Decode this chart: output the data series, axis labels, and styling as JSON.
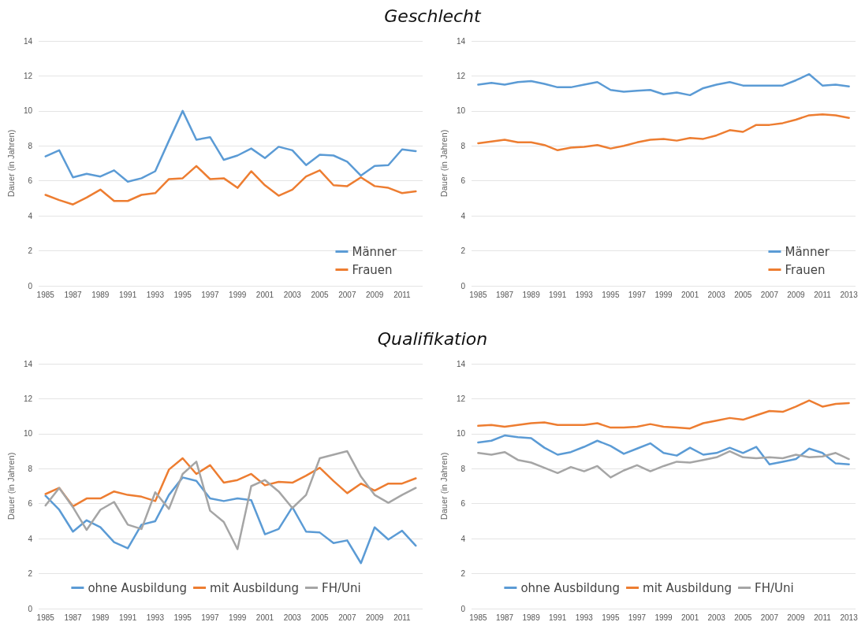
{
  "chart_data": [
    {
      "type": "line",
      "title": "Geschlecht",
      "ylabel": "Dauer (in Jahren)",
      "categories": [
        "1985",
        null,
        "1987",
        null,
        "1989",
        null,
        "1991",
        null,
        "1993",
        null,
        "1995",
        null,
        "1997",
        null,
        "1999",
        null,
        "2001",
        null,
        "2003",
        null,
        "2005",
        null,
        "2007",
        null,
        "2009",
        null,
        "2011",
        null
      ],
      "ylim": [
        0,
        14
      ],
      "yticks": [
        0,
        2,
        4,
        6,
        8,
        10,
        12,
        14
      ],
      "grid": "y",
      "legend": "bottom right",
      "marker": "none",
      "line_style": "solid",
      "series": [
        {
          "name": "Männer",
          "color": "#5b9bd5",
          "values": [
            7.4,
            7.75,
            6.2,
            6.4,
            6.25,
            6.6,
            5.95,
            6.15,
            6.55,
            8.3,
            10.0,
            8.35,
            8.5,
            7.2,
            7.45,
            7.85,
            7.3,
            7.95,
            7.75,
            6.9,
            7.5,
            7.45,
            7.1,
            6.3,
            6.85,
            6.9,
            7.8,
            7.7
          ]
        },
        {
          "name": "Frauen",
          "color": "#ed7d31",
          "values": [
            5.2,
            4.9,
            4.65,
            5.05,
            5.5,
            4.85,
            4.85,
            5.2,
            5.3,
            6.1,
            6.15,
            6.85,
            6.1,
            6.15,
            5.6,
            6.55,
            5.75,
            5.15,
            5.5,
            6.25,
            6.6,
            5.75,
            5.7,
            6.2,
            5.7,
            5.6,
            5.3,
            5.4
          ]
        }
      ]
    },
    {
      "type": "line",
      "ylabel": "Dauer (in Jahren)",
      "categories": [
        "1985",
        null,
        "1987",
        null,
        "1989",
        null,
        "1991",
        null,
        "1993",
        null,
        "1995",
        null,
        "1997",
        null,
        "1999",
        null,
        "2001",
        null,
        "2003",
        null,
        "2005",
        null,
        "2007",
        null,
        "2009",
        null,
        "2011",
        null,
        "2013"
      ],
      "ylim": [
        0,
        14
      ],
      "yticks": [
        0,
        2,
        4,
        6,
        8,
        10,
        12,
        14
      ],
      "grid": "y",
      "legend": "bottom right",
      "marker": "none",
      "line_style": "solid",
      "series": [
        {
          "name": "Männer",
          "color": "#5b9bd5",
          "values": [
            11.5,
            11.6,
            11.5,
            11.65,
            11.7,
            11.55,
            11.35,
            11.35,
            11.5,
            11.65,
            11.2,
            11.1,
            11.15,
            11.2,
            10.95,
            11.05,
            10.9,
            11.3,
            11.5,
            11.65,
            11.45,
            11.45,
            11.45,
            11.45,
            11.75,
            12.1,
            11.45,
            11.5,
            11.4
          ]
        },
        {
          "name": "Frauen",
          "color": "#ed7d31",
          "values": [
            8.15,
            8.25,
            8.35,
            8.2,
            8.2,
            8.05,
            7.75,
            7.9,
            7.95,
            8.05,
            7.85,
            8.0,
            8.2,
            8.35,
            8.4,
            8.3,
            8.45,
            8.4,
            8.6,
            8.9,
            8.8,
            9.2,
            9.2,
            9.3,
            9.5,
            9.75,
            9.8,
            9.75,
            9.6
          ]
        }
      ]
    },
    {
      "type": "line",
      "title": "Qualifikation",
      "ylabel": "Dauer (in Jahren)",
      "categories": [
        "1985",
        null,
        "1987",
        null,
        "1989",
        null,
        "1991",
        null,
        "1993",
        null,
        "1995",
        null,
        "1997",
        null,
        "1999",
        null,
        "2001",
        null,
        "2003",
        null,
        "2005",
        null,
        "2007",
        null,
        "2009",
        null,
        "2011",
        null
      ],
      "ylim": [
        0,
        14
      ],
      "yticks": [
        0,
        2,
        4,
        6,
        8,
        10,
        12,
        14
      ],
      "grid": "y",
      "legend": "bottom",
      "marker": "none",
      "line_style": "solid",
      "series": [
        {
          "name": "ohne Ausbildung",
          "color": "#5b9bd5",
          "values": [
            6.45,
            5.65,
            4.4,
            5.05,
            4.65,
            3.8,
            3.45,
            4.8,
            5.0,
            6.5,
            7.5,
            7.3,
            6.3,
            6.15,
            6.3,
            6.2,
            4.25,
            4.55,
            5.8,
            4.4,
            4.35,
            3.75,
            3.9,
            2.6,
            4.65,
            3.95,
            4.45,
            3.6
          ]
        },
        {
          "name": "mit Ausbildung",
          "color": "#ed7d31",
          "values": [
            6.55,
            6.9,
            5.85,
            6.3,
            6.3,
            6.7,
            6.5,
            6.4,
            6.15,
            7.95,
            8.6,
            7.7,
            8.2,
            7.2,
            7.35,
            7.7,
            7.05,
            7.25,
            7.2,
            7.6,
            8.05,
            7.3,
            6.6,
            7.15,
            6.75,
            7.15,
            7.15,
            7.45
          ]
        },
        {
          "name": "FH/Uni",
          "color": "#a5a5a5",
          "values": [
            5.9,
            6.9,
            5.8,
            4.5,
            5.65,
            6.1,
            4.8,
            4.55,
            6.65,
            5.7,
            7.7,
            8.4,
            5.6,
            4.95,
            3.4,
            7.0,
            7.35,
            6.7,
            5.75,
            6.5,
            8.6,
            8.8,
            9.0,
            7.55,
            6.5,
            6.05,
            6.5,
            6.9
          ]
        }
      ]
    },
    {
      "type": "line",
      "ylabel": "Dauer (in Jahren)",
      "categories": [
        "1985",
        null,
        "1987",
        null,
        "1989",
        null,
        "1991",
        null,
        "1993",
        null,
        "1995",
        null,
        "1997",
        null,
        "1999",
        null,
        "2001",
        null,
        "2003",
        null,
        "2005",
        null,
        "2007",
        null,
        "2009",
        null,
        "2011",
        null,
        "2013"
      ],
      "ylim": [
        0,
        14
      ],
      "yticks": [
        0,
        2,
        4,
        6,
        8,
        10,
        12,
        14
      ],
      "grid": "y",
      "legend": "bottom",
      "marker": "none",
      "line_style": "solid",
      "series": [
        {
          "name": "ohne Ausbildung",
          "color": "#5b9bd5",
          "values": [
            9.5,
            9.6,
            9.9,
            9.8,
            9.75,
            9.2,
            8.8,
            8.95,
            9.25,
            9.6,
            9.3,
            8.85,
            9.15,
            9.45,
            8.9,
            8.75,
            9.2,
            8.8,
            8.9,
            9.2,
            8.9,
            9.25,
            8.25,
            8.4,
            8.55,
            9.15,
            8.9,
            8.3,
            8.25
          ]
        },
        {
          "name": "mit Ausbildung",
          "color": "#ed7d31",
          "values": [
            10.45,
            10.5,
            10.4,
            10.5,
            10.6,
            10.65,
            10.5,
            10.5,
            10.5,
            10.6,
            10.35,
            10.35,
            10.4,
            10.55,
            10.4,
            10.35,
            10.3,
            10.6,
            10.75,
            10.9,
            10.8,
            11.05,
            11.3,
            11.25,
            11.55,
            11.9,
            11.55,
            11.7,
            11.75
          ]
        },
        {
          "name": "FH/Uni",
          "color": "#a5a5a5",
          "values": [
            8.9,
            8.8,
            8.95,
            8.5,
            8.35,
            8.05,
            7.75,
            8.1,
            7.85,
            8.15,
            7.5,
            7.9,
            8.2,
            7.85,
            8.15,
            8.4,
            8.35,
            8.5,
            8.65,
            9.0,
            8.65,
            8.6,
            8.65,
            8.6,
            8.8,
            8.65,
            8.7,
            8.9,
            8.55
          ]
        }
      ]
    }
  ]
}
